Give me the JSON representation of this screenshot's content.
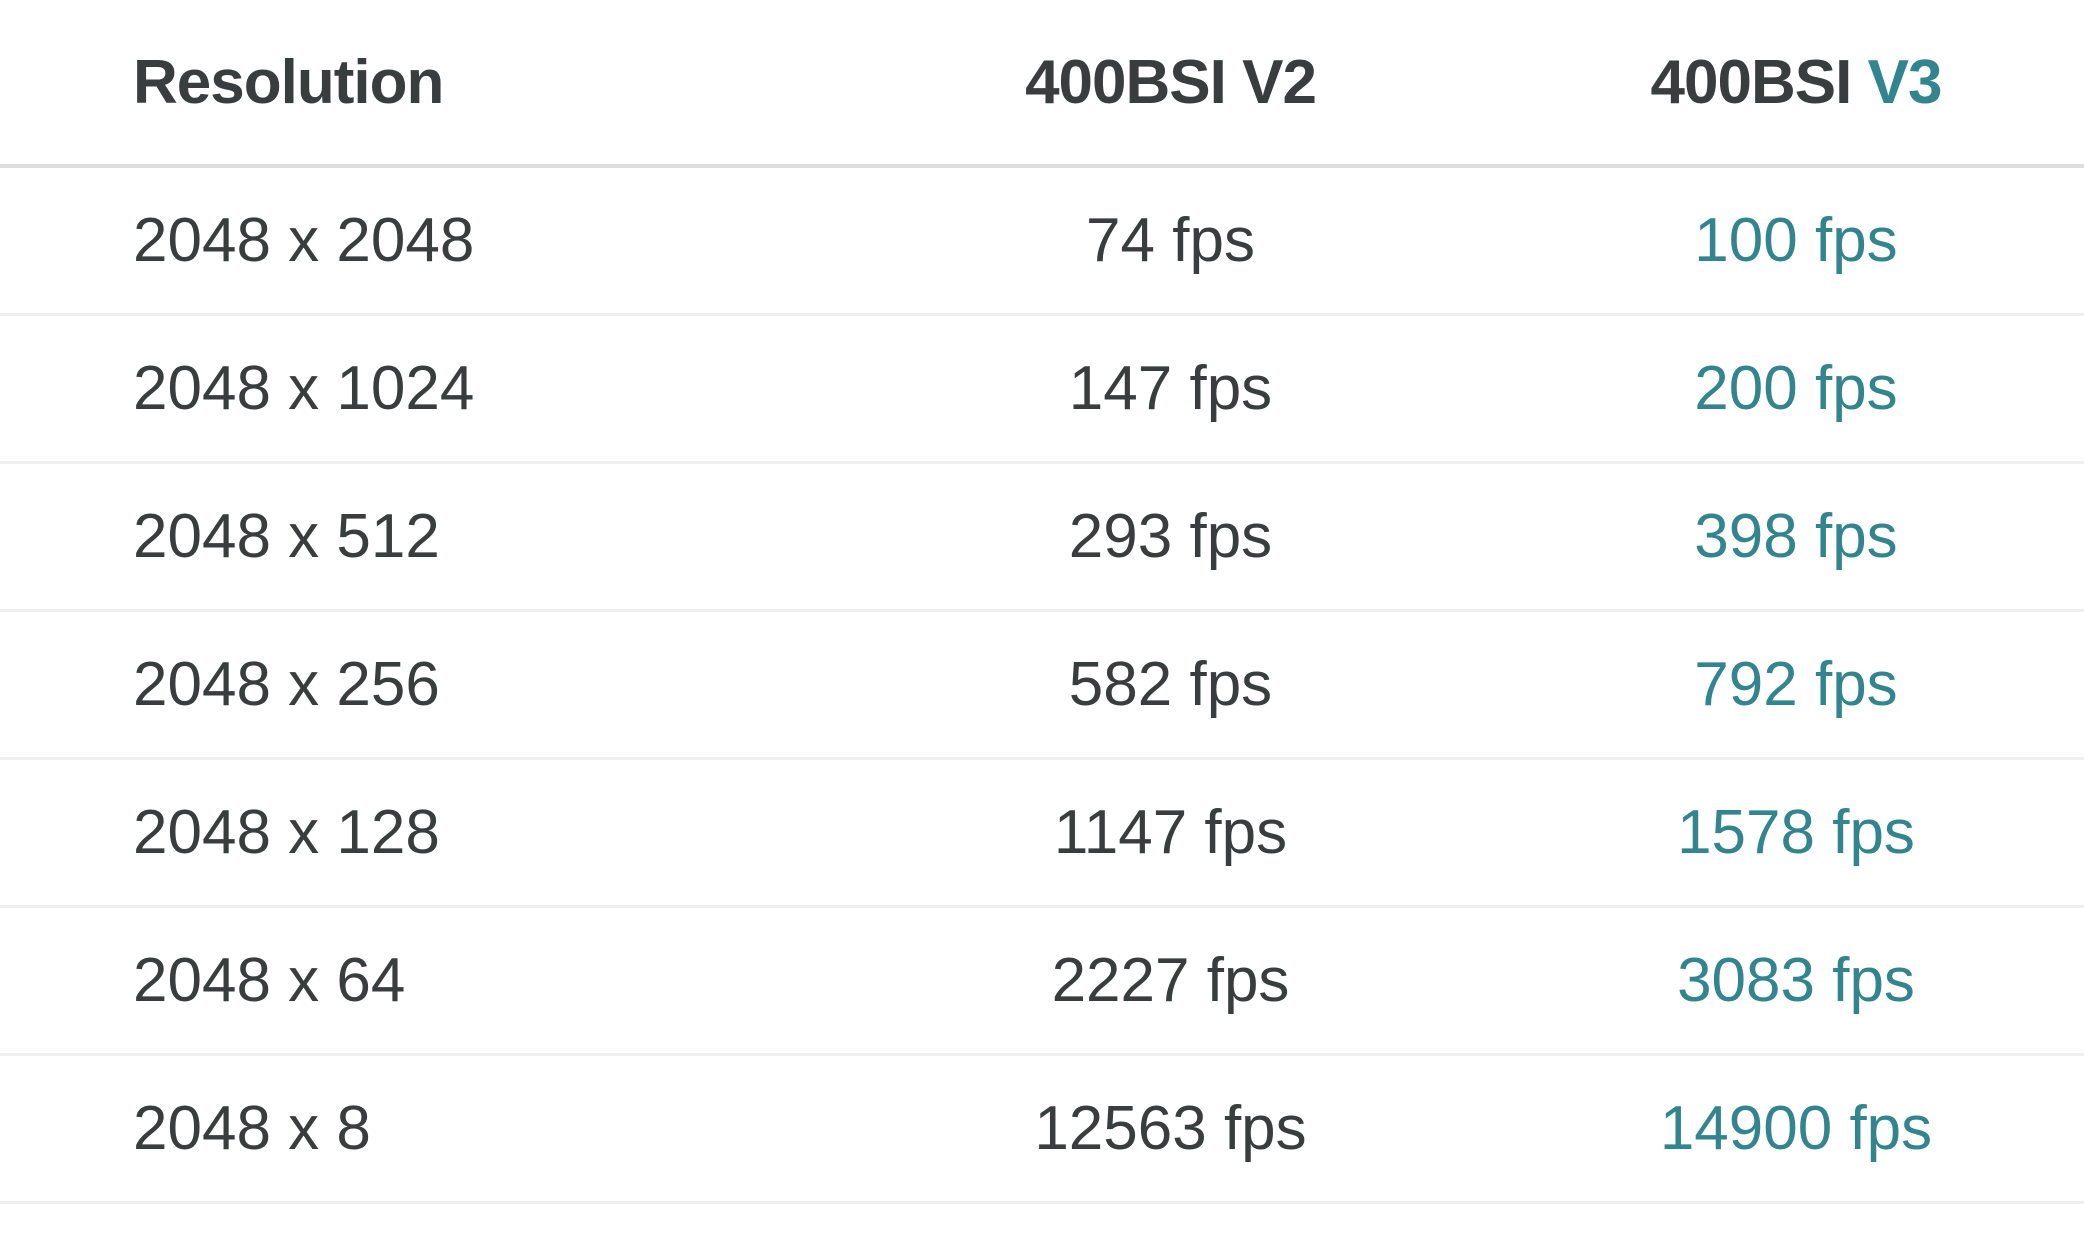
{
  "colors": {
    "accent": "#32858f",
    "text": "#3a3d3e"
  },
  "table": {
    "headers": {
      "resolution": "Resolution",
      "v2": "400BSI V2",
      "v3_prefix": "400BSI",
      "v3_suffix": "V3"
    },
    "rows": [
      {
        "resolution": "2048 x 2048",
        "v2": "74 fps",
        "v3": "100 fps"
      },
      {
        "resolution": "2048 x 1024",
        "v2": "147 fps",
        "v3": "200 fps"
      },
      {
        "resolution": "2048 x 512",
        "v2": "293 fps",
        "v3": "398 fps"
      },
      {
        "resolution": "2048 x 256",
        "v2": "582 fps",
        "v3": "792 fps"
      },
      {
        "resolution": "2048 x 128",
        "v2": "1147 fps",
        "v3": "1578 fps"
      },
      {
        "resolution": "2048 x 64",
        "v2": "2227 fps",
        "v3": "3083 fps"
      },
      {
        "resolution": "2048 x 8",
        "v2": "12563 fps",
        "v3": "14900 fps"
      }
    ]
  }
}
